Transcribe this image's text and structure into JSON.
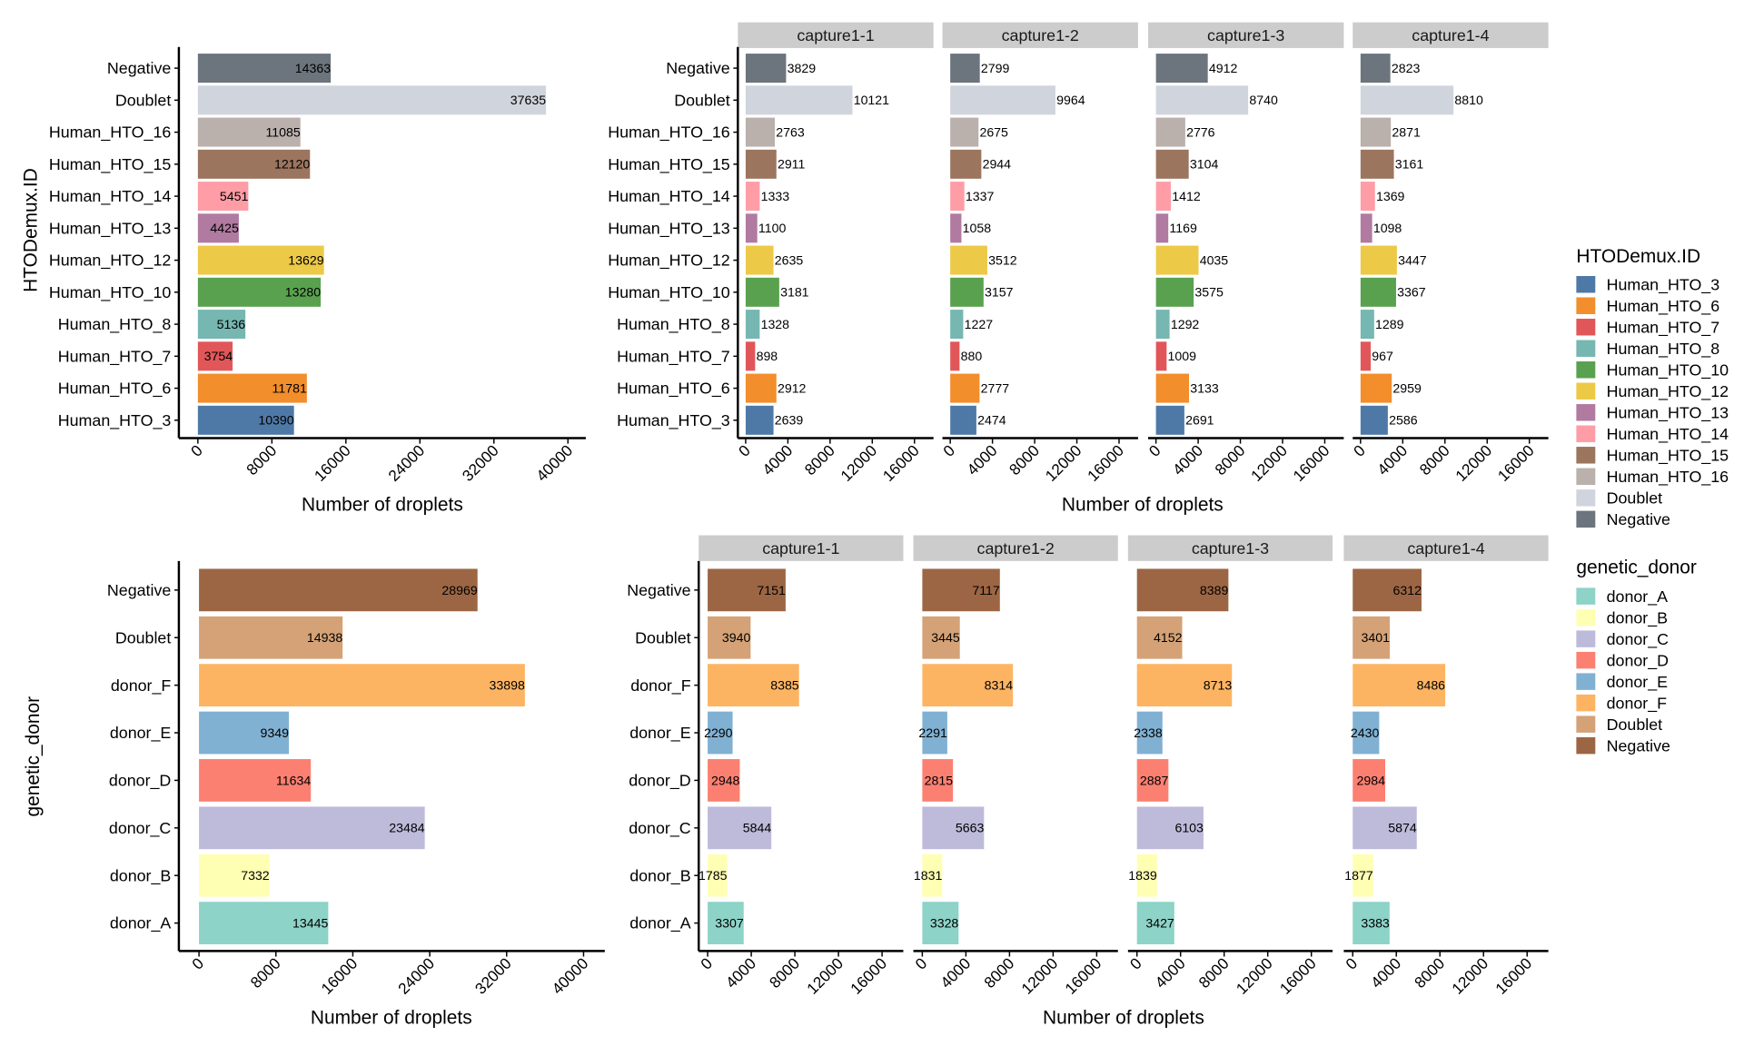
{
  "chart_data": [
    {
      "id": "hto_total",
      "type": "bar",
      "orientation": "horizontal",
      "title": "",
      "xlabel": "Number of droplets",
      "ylabel": "HTODemux.ID",
      "xlim": [
        0,
        40000
      ],
      "xticks": [
        0,
        8000,
        16000,
        24000,
        32000,
        40000
      ],
      "categories": [
        "Negative",
        "Doublet",
        "Human_HTO_16",
        "Human_HTO_15",
        "Human_HTO_14",
        "Human_HTO_13",
        "Human_HTO_12",
        "Human_HTO_10",
        "Human_HTO_8",
        "Human_HTO_7",
        "Human_HTO_6",
        "Human_HTO_3"
      ],
      "values": [
        14363,
        37635,
        11085,
        12120,
        5451,
        4425,
        13629,
        13280,
        5136,
        3754,
        11781,
        10390
      ],
      "label_position": "inside-end"
    },
    {
      "id": "hto_by_capture",
      "type": "bar",
      "orientation": "horizontal",
      "faceted": true,
      "xlabel": "Number of droplets",
      "ylabel": "",
      "xlim": [
        0,
        16000
      ],
      "xticks": [
        0,
        4000,
        8000,
        12000,
        16000
      ],
      "categories": [
        "Negative",
        "Doublet",
        "Human_HTO_16",
        "Human_HTO_15",
        "Human_HTO_14",
        "Human_HTO_13",
        "Human_HTO_12",
        "Human_HTO_10",
        "Human_HTO_8",
        "Human_HTO_7",
        "Human_HTO_6",
        "Human_HTO_3"
      ],
      "facets": [
        {
          "name": "capture1-1",
          "values": [
            3829,
            10121,
            2763,
            2911,
            1333,
            1100,
            2635,
            3181,
            1328,
            898,
            2912,
            2639
          ]
        },
        {
          "name": "capture1-2",
          "values": [
            2799,
            9964,
            2675,
            2944,
            1337,
            1058,
            3512,
            3157,
            1227,
            880,
            2777,
            2474
          ]
        },
        {
          "name": "capture1-3",
          "values": [
            4912,
            8740,
            2776,
            3104,
            1412,
            1169,
            4035,
            3575,
            1292,
            1009,
            3133,
            2691
          ]
        },
        {
          "name": "capture1-4",
          "values": [
            2823,
            8810,
            2871,
            3161,
            1369,
            1098,
            3447,
            3367,
            1289,
            967,
            2959,
            2586
          ]
        }
      ],
      "label_position": "outside-end"
    },
    {
      "id": "donor_total",
      "type": "bar",
      "orientation": "horizontal",
      "xlabel": "Number of droplets",
      "ylabel": "genetic_donor",
      "xlim": [
        0,
        40000
      ],
      "xticks": [
        0,
        8000,
        16000,
        24000,
        32000,
        40000
      ],
      "categories": [
        "Negative",
        "Doublet",
        "donor_F",
        "donor_E",
        "donor_D",
        "donor_C",
        "donor_B",
        "donor_A"
      ],
      "values": [
        28969,
        14938,
        33898,
        9349,
        11634,
        23484,
        7332,
        13445
      ],
      "label_position": "inside-end"
    },
    {
      "id": "donor_by_capture",
      "type": "bar",
      "orientation": "horizontal",
      "faceted": true,
      "xlabel": "Number of droplets",
      "ylabel": "",
      "xlim": [
        0,
        16000
      ],
      "xticks": [
        0,
        4000,
        8000,
        12000,
        16000
      ],
      "categories": [
        "Negative",
        "Doublet",
        "donor_F",
        "donor_E",
        "donor_D",
        "donor_C",
        "donor_B",
        "donor_A"
      ],
      "facets": [
        {
          "name": "capture1-1",
          "values": [
            7151,
            3940,
            8385,
            2290,
            2948,
            5844,
            1785,
            3307
          ]
        },
        {
          "name": "capture1-2",
          "values": [
            7117,
            3445,
            8314,
            2291,
            2815,
            5663,
            1831,
            3328
          ]
        },
        {
          "name": "capture1-3",
          "values": [
            8389,
            4152,
            8713,
            2338,
            2887,
            6103,
            1839,
            3427
          ]
        },
        {
          "name": "capture1-4",
          "values": [
            6312,
            3401,
            8486,
            2430,
            2984,
            5874,
            1877,
            3383
          ]
        }
      ],
      "label_position": "inside-end"
    }
  ],
  "legends": {
    "hto": {
      "title": "HTODemux.ID",
      "items": [
        {
          "label": "Human_HTO_3",
          "color": "#4E79A7"
        },
        {
          "label": "Human_HTO_6",
          "color": "#F28E2B"
        },
        {
          "label": "Human_HTO_7",
          "color": "#E15759"
        },
        {
          "label": "Human_HTO_8",
          "color": "#76B7B2"
        },
        {
          "label": "Human_HTO_10",
          "color": "#59A14F"
        },
        {
          "label": "Human_HTO_12",
          "color": "#EDC948"
        },
        {
          "label": "Human_HTO_13",
          "color": "#B07AA1"
        },
        {
          "label": "Human_HTO_14",
          "color": "#FF9DA7"
        },
        {
          "label": "Human_HTO_15",
          "color": "#9C755F"
        },
        {
          "label": "Human_HTO_16",
          "color": "#BAB0AC"
        },
        {
          "label": "Doublet",
          "color": "#D0D4DC"
        },
        {
          "label": "Negative",
          "color": "#6C757D"
        }
      ]
    },
    "donor": {
      "title": "genetic_donor",
      "items": [
        {
          "label": "donor_A",
          "color": "#8DD3C7"
        },
        {
          "label": "donor_B",
          "color": "#FFFFB3"
        },
        {
          "label": "donor_C",
          "color": "#BEBADA"
        },
        {
          "label": "donor_D",
          "color": "#FB8072"
        },
        {
          "label": "donor_E",
          "color": "#80B1D3"
        },
        {
          "label": "donor_F",
          "color": "#FDB462"
        },
        {
          "label": "Doublet",
          "color": "#D4A276"
        },
        {
          "label": "Negative",
          "color": "#9C6644"
        }
      ]
    }
  }
}
